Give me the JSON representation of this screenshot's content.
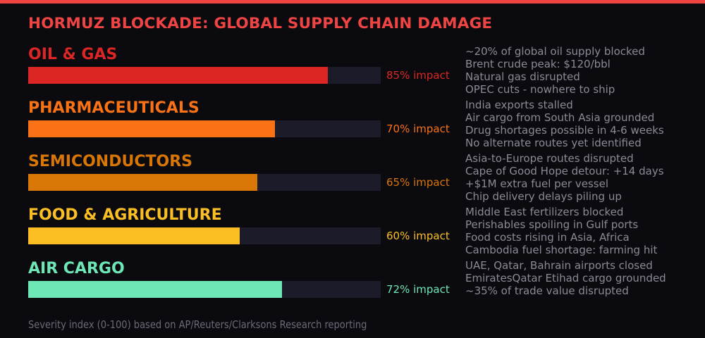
{
  "title": "HORMUZ BLOCKADE: GLOBAL SUPPLY CHAIN DAMAGE",
  "accent_color": "#ef4444",
  "chart_data": {
    "type": "bar",
    "orientation": "horizontal",
    "xlim": [
      0,
      100
    ],
    "categories": [
      "OIL & GAS",
      "PHARMACEUTICALS",
      "SEMICONDUCTORS",
      "FOOD & AGRICULTURE",
      "AIR CARGO"
    ],
    "values": [
      85,
      70,
      65,
      60,
      72
    ],
    "value_labels": [
      "85% impact",
      "70% impact",
      "65% impact",
      "60% impact",
      "72% impact"
    ],
    "colors": [
      "#dc2626",
      "#f97316",
      "#d97706",
      "#fbbf24",
      "#6ee7b7"
    ],
    "notes": [
      [
        "~20% of global oil supply blocked",
        "Brent crude peak: $120/bbl",
        "Natural gas disrupted",
        "OPEC cuts - nowhere to ship"
      ],
      [
        "India exports stalled",
        "Air cargo from South Asia grounded",
        "Drug shortages possible in 4-6 weeks",
        "No alternate routes yet identified"
      ],
      [
        "Asia-to-Europe routes disrupted",
        "Cape of Good Hope detour: +14 days",
        "+$1M extra fuel per vessel",
        "Chip delivery delays piling up"
      ],
      [
        "Middle East fertilizers blocked",
        "Perishables spoiling in Gulf ports",
        "Food costs rising in Asia, Africa",
        "Cambodia fuel shortage: farming hit"
      ],
      [
        "UAE, Qatar, Bahrain airports closed",
        "EmiratesQatar Etihad cargo grounded",
        "~35% of trade value disrupted"
      ]
    ],
    "footnote": "Severity index (0-100) based on AP/Reuters/Clarksons Research reporting"
  }
}
